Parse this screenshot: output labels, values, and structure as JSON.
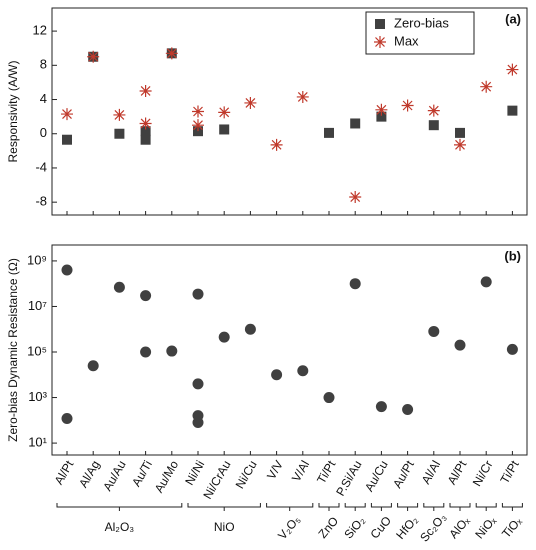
{
  "x_groups": [
    {
      "label": "Al₂O₃",
      "categories": [
        "Al/Pt",
        "Al/Ag",
        "Au/Au",
        "Au/Ti",
        "Au/Mo"
      ]
    },
    {
      "label": "NiO",
      "categories": [
        "Ni/Ni",
        "Ni/CrAu",
        "Ni/Cu"
      ]
    },
    {
      "label": "V₂O₅",
      "categories": [
        "V/V",
        "V/Al"
      ]
    },
    {
      "label": "ZnO",
      "categories": [
        "Ti/Pt"
      ]
    },
    {
      "label": "SiO₂",
      "categories": [
        "P.Si/Au"
      ]
    },
    {
      "label": "CuO",
      "categories": [
        "Au/Cu"
      ]
    },
    {
      "label": "HfO₂",
      "categories": [
        "Au/Pt"
      ]
    },
    {
      "label": "Sc₂O₃",
      "categories": [
        "Al/Al"
      ]
    },
    {
      "label": "AlOₓ",
      "categories": [
        "Al/Pt"
      ]
    },
    {
      "label": "NiOₓ",
      "categories": [
        "Ni/Cr"
      ]
    },
    {
      "label": "TiOₓ",
      "categories": [
        "Ti/Pt"
      ]
    }
  ],
  "chart_data": [
    {
      "type": "scatter",
      "panel_label": "(a)",
      "y_label": "Responsivity (A/W)",
      "ylim": [
        -9.5,
        14.7
      ],
      "yticks": [
        -8,
        -4,
        0,
        4,
        8,
        12
      ],
      "legend": "upper right",
      "series": [
        {
          "name": "Zero-bias",
          "color": "#404040",
          "marker": "square",
          "values": [
            [
              -0.7
            ],
            [
              9.0
            ],
            [
              0.0
            ],
            [
              0.3,
              -0.7
            ],
            [
              9.4
            ],
            [
              0.3
            ],
            [
              0.5
            ],
            null,
            null,
            null,
            [
              0.1
            ],
            [
              1.2
            ],
            [
              2.0
            ],
            null,
            [
              1.0
            ],
            [
              0.1
            ],
            null,
            [
              2.7
            ]
          ]
        },
        {
          "name": "Max",
          "color": "#c0392b",
          "marker": "asterisk",
          "values": [
            [
              2.3
            ],
            [
              9.0
            ],
            [
              2.2
            ],
            [
              5.0,
              1.2
            ],
            [
              9.4
            ],
            [
              2.6,
              1.0
            ],
            [
              2.5
            ],
            [
              3.6
            ],
            [
              -1.3
            ],
            [
              4.3
            ],
            null,
            [
              -7.4
            ],
            [
              2.8
            ],
            [
              3.3
            ],
            [
              2.7
            ],
            [
              -1.3
            ],
            [
              5.5
            ],
            [
              7.5
            ]
          ]
        }
      ]
    },
    {
      "type": "scatter",
      "panel_label": "(b)",
      "y_label": "Zero-bias Dynamic Resistance (Ω)",
      "log_scale": true,
      "ylim": [
        3,
        5000000000
      ],
      "yticks": [
        {
          "value": 10,
          "label": "10¹"
        },
        {
          "value": 1000,
          "label": "10³"
        },
        {
          "value": 100000,
          "label": "10⁵"
        },
        {
          "value": 10000000,
          "label": "10⁷"
        },
        {
          "value": 1000000000,
          "label": "10⁹"
        }
      ],
      "series": [
        {
          "color": "#404040",
          "marker": "circle",
          "values": [
            [
              400000000,
              120
            ],
            [
              25000
            ],
            [
              70000000
            ],
            [
              30000000,
              100000
            ],
            [
              110000
            ],
            [
              35000000,
              4000,
              160,
              80
            ],
            [
              450000
            ],
            [
              1000000
            ],
            [
              10000
            ],
            [
              15000
            ],
            [
              1000
            ],
            [
              100000000
            ],
            [
              400
            ],
            [
              300
            ],
            [
              800000
            ],
            [
              200000
            ],
            [
              120000000
            ],
            [
              130000
            ]
          ]
        }
      ]
    }
  ]
}
